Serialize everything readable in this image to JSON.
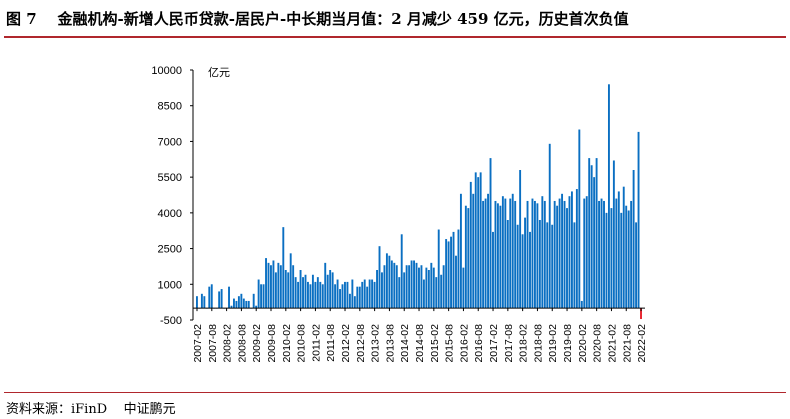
{
  "title": "图 7    金融机构-新增人民币贷款-居民户-中长期当月值：2 月减少 459 亿元，历史首次负值",
  "source": "资料来源：iFinD    中证鹏元",
  "chart_data": {
    "type": "bar",
    "unit_label": "亿元",
    "start_month": "2007-02",
    "end_month": "2022-02",
    "ylim": [
      -500,
      10000
    ],
    "yticks": [
      -500,
      1000,
      2500,
      4000,
      5500,
      7000,
      8500,
      10000
    ],
    "xtick_labels": [
      "2007-02",
      "2007-08",
      "2008-02",
      "2008-08",
      "2009-02",
      "2009-08",
      "2010-02",
      "2010-08",
      "2011-02",
      "2011-08",
      "2012-02",
      "2012-08",
      "2013-02",
      "2013-08",
      "2014-02",
      "2014-08",
      "2015-02",
      "2015-08",
      "2016-02",
      "2016-08",
      "2017-02",
      "2017-08",
      "2018-02",
      "2018-08",
      "2019-02",
      "2019-08",
      "2020-02",
      "2020-08",
      "2021-02",
      "2021-08",
      "2022-02"
    ],
    "grid": false,
    "colors": {
      "bar": "#0a6fc2",
      "negative_bar": "#e8202a"
    },
    "values": [
      500,
      0,
      600,
      500,
      0,
      900,
      1000,
      0,
      0,
      700,
      800,
      0,
      0,
      900,
      100,
      400,
      300,
      500,
      600,
      400,
      300,
      300,
      0,
      600,
      100,
      1200,
      1000,
      1000,
      2100,
      1900,
      1800,
      2000,
      1500,
      1900,
      1800,
      3400,
      1600,
      1500,
      2300,
      1800,
      1300,
      1100,
      1600,
      1300,
      1400,
      1100,
      1000,
      1400,
      1100,
      1300,
      1100,
      1000,
      1900,
      1400,
      1600,
      1500,
      1000,
      1200,
      800,
      1000,
      1100,
      1100,
      600,
      1200,
      500,
      900,
      900,
      1100,
      1200,
      900,
      1200,
      1200,
      1100,
      1600,
      2600,
      1500,
      1800,
      2300,
      2200,
      2000,
      1900,
      1800,
      1300,
      3100,
      1500,
      1800,
      1800,
      2000,
      2000,
      1900,
      1700,
      1800,
      1200,
      1700,
      1600,
      1900,
      1700,
      1300,
      3300,
      1400,
      1800,
      2900,
      2800,
      3000,
      3200,
      2200,
      3300,
      4800,
      1700,
      4300,
      4200,
      5300,
      4800,
      5700,
      5500,
      5700,
      4500,
      4600,
      4800,
      6300,
      3200,
      4500,
      4400,
      4300,
      4700,
      4600,
      3700,
      4600,
      4800,
      4500,
      3500,
      5800,
      3100,
      3800,
      4500,
      3200,
      4600,
      4500,
      4400,
      3700,
      4700,
      4500,
      3600,
      6900,
      3500,
      4500,
      4300,
      4600,
      4800,
      4500,
      4200,
      4700,
      4900,
      3600,
      5000,
      7500,
      300,
      4600,
      4700,
      6300,
      6000,
      5500,
      6300,
      4500,
      4600,
      4500,
      4000,
      9400,
      4200,
      6200,
      4600,
      4900,
      4000,
      5100,
      4300,
      4100,
      4500,
      5800,
      3600,
      7400,
      -459
    ]
  }
}
